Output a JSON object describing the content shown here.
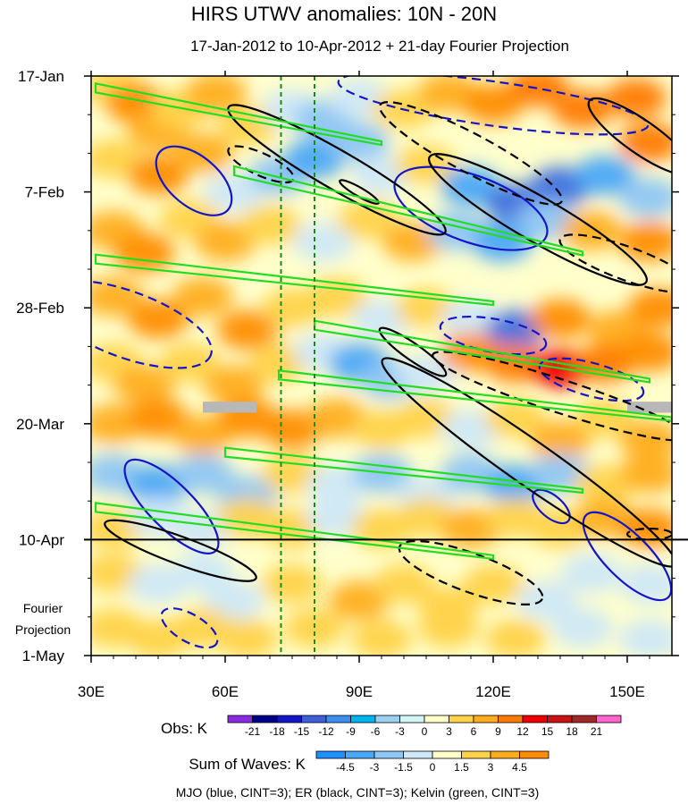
{
  "chart_data": {
    "type": "heatmap",
    "title": "HIRS UTWV anomalies: 10N - 20N",
    "subtitle": "17-Jan-2012 to 10-Apr-2012 + 21-day Fourier Projection",
    "x_tick_labels": [
      "30E",
      "60E",
      "90E",
      "120E",
      "150E"
    ],
    "x_ticks": [
      30,
      60,
      90,
      120,
      150
    ],
    "xlim": [
      30,
      160
    ],
    "y_tick_labels": [
      "17-Jan",
      "7-Feb",
      "28-Feb",
      "20-Mar",
      "10-Apr",
      "1-May"
    ],
    "y_ticks_days": [
      0,
      21,
      42,
      63,
      84,
      105
    ],
    "ylim_days": [
      0,
      105
    ],
    "projection_start_day": 84,
    "projection_label_line1": "Fourier",
    "projection_label_line2": "Projection",
    "reference_longitudes": [
      72.5,
      80
    ],
    "obs_colorbar": {
      "title": "Obs: K",
      "levels": [
        "-21",
        "-18",
        "-15",
        "-12",
        "-9",
        "-6",
        "-3",
        "0",
        "3",
        "6",
        "9",
        "12",
        "15",
        "18",
        "21"
      ],
      "colors": [
        "#8a2be2",
        "#00008b",
        "#1515c8",
        "#3e5fd8",
        "#3c8ff0",
        "#00b4f0",
        "#9cd2f0",
        "#d2f5f5",
        "#ffffc8",
        "#ffd34a",
        "#ffad1e",
        "#ff7a00",
        "#f00000",
        "#c81414",
        "#a02828",
        "#ff66cc"
      ]
    },
    "waves_colorbar": {
      "title": "Sum of Waves: K",
      "levels": [
        "-4.5",
        "-3",
        "-1.5",
        "0",
        "1.5",
        "3",
        "4.5"
      ],
      "colors": [
        "#1e90ff",
        "#4aa8f8",
        "#8ec6f4",
        "#cfe8f8",
        "#ffffcc",
        "#ffd34a",
        "#ffad1e",
        "#ff8c00"
      ]
    },
    "contour_colors": {
      "mjo": "#1515c8",
      "er": "#000000",
      "kelvin": "#22dd22",
      "ref_lines": "#1a8a1a"
    },
    "footer": "MJO (blue, CINT=3); ER (black, CINT=3); Kelvin (green, CINT=3)",
    "anomaly_field": [
      {
        "x": 35,
        "y": 2,
        "v": 1.5
      },
      {
        "x": 40,
        "y": 5,
        "v": 4.5
      },
      {
        "x": 45,
        "y": 10,
        "v": 3
      },
      {
        "x": 50,
        "y": 6,
        "v": 1.5
      },
      {
        "x": 58,
        "y": 3,
        "v": 3
      },
      {
        "x": 65,
        "y": 9,
        "v": 1.5
      },
      {
        "x": 75,
        "y": 6,
        "v": -1.5
      },
      {
        "x": 82,
        "y": 8,
        "v": -3
      },
      {
        "x": 90,
        "y": 4,
        "v": -1.5
      },
      {
        "x": 100,
        "y": 6,
        "v": 1.5
      },
      {
        "x": 110,
        "y": 3,
        "v": 3
      },
      {
        "x": 120,
        "y": 5,
        "v": 4.5
      },
      {
        "x": 130,
        "y": 2,
        "v": 6
      },
      {
        "x": 140,
        "y": 6,
        "v": 7.5
      },
      {
        "x": 152,
        "y": 4,
        "v": 6
      },
      {
        "x": 155,
        "y": 12,
        "v": 6
      },
      {
        "x": 35,
        "y": 15,
        "v": 1.5
      },
      {
        "x": 45,
        "y": 18,
        "v": 4.5
      },
      {
        "x": 55,
        "y": 14,
        "v": 3
      },
      {
        "x": 62,
        "y": 21,
        "v": -1.5
      },
      {
        "x": 72,
        "y": 18,
        "v": -3
      },
      {
        "x": 80,
        "y": 15,
        "v": -4.5
      },
      {
        "x": 90,
        "y": 12,
        "v": -3
      },
      {
        "x": 95,
        "y": 18,
        "v": -1.5
      },
      {
        "x": 105,
        "y": 16,
        "v": 1.5
      },
      {
        "x": 115,
        "y": 20,
        "v": -4.5
      },
      {
        "x": 125,
        "y": 23,
        "v": -6
      },
      {
        "x": 135,
        "y": 20,
        "v": -7.5
      },
      {
        "x": 145,
        "y": 18,
        "v": -4.5
      },
      {
        "x": 155,
        "y": 22,
        "v": -3
      },
      {
        "x": 35,
        "y": 28,
        "v": 3
      },
      {
        "x": 42,
        "y": 32,
        "v": 4.5
      },
      {
        "x": 52,
        "y": 26,
        "v": 1.5
      },
      {
        "x": 60,
        "y": 30,
        "v": 3
      },
      {
        "x": 70,
        "y": 27,
        "v": 1.5
      },
      {
        "x": 82,
        "y": 30,
        "v": -1.5
      },
      {
        "x": 92,
        "y": 26,
        "v": 1.5
      },
      {
        "x": 102,
        "y": 30,
        "v": 3
      },
      {
        "x": 112,
        "y": 28,
        "v": -3
      },
      {
        "x": 122,
        "y": 30,
        "v": -4.5
      },
      {
        "x": 132,
        "y": 26,
        "v": -3
      },
      {
        "x": 142,
        "y": 28,
        "v": 3
      },
      {
        "x": 155,
        "y": 30,
        "v": 4.5
      },
      {
        "x": 35,
        "y": 40,
        "v": 3
      },
      {
        "x": 45,
        "y": 44,
        "v": 4.5
      },
      {
        "x": 55,
        "y": 40,
        "v": 3
      },
      {
        "x": 65,
        "y": 46,
        "v": 4.5
      },
      {
        "x": 75,
        "y": 42,
        "v": 1.5
      },
      {
        "x": 85,
        "y": 40,
        "v": 1.5
      },
      {
        "x": 95,
        "y": 44,
        "v": -1.5
      },
      {
        "x": 105,
        "y": 42,
        "v": 1.5
      },
      {
        "x": 115,
        "y": 44,
        "v": -1.5
      },
      {
        "x": 125,
        "y": 46,
        "v": -6
      },
      {
        "x": 135,
        "y": 44,
        "v": 4.5
      },
      {
        "x": 148,
        "y": 46,
        "v": 3
      },
      {
        "x": 157,
        "y": 42,
        "v": 4.5
      },
      {
        "x": 35,
        "y": 52,
        "v": 1.5
      },
      {
        "x": 42,
        "y": 56,
        "v": 3
      },
      {
        "x": 52,
        "y": 52,
        "v": 1.5
      },
      {
        "x": 62,
        "y": 56,
        "v": 3
      },
      {
        "x": 72,
        "y": 52,
        "v": 1.5
      },
      {
        "x": 82,
        "y": 50,
        "v": -1.5
      },
      {
        "x": 90,
        "y": 52,
        "v": -4.5
      },
      {
        "x": 97,
        "y": 55,
        "v": -3
      },
      {
        "x": 105,
        "y": 54,
        "v": -1.5
      },
      {
        "x": 115,
        "y": 50,
        "v": 4.5
      },
      {
        "x": 125,
        "y": 52,
        "v": 7.5
      },
      {
        "x": 135,
        "y": 53,
        "v": 9
      },
      {
        "x": 145,
        "y": 52,
        "v": 7.5
      },
      {
        "x": 155,
        "y": 50,
        "v": 4.5
      },
      {
        "x": 35,
        "y": 63,
        "v": 3
      },
      {
        "x": 45,
        "y": 62,
        "v": 4.5
      },
      {
        "x": 55,
        "y": 65,
        "v": 3
      },
      {
        "x": 65,
        "y": 62,
        "v": 4.5
      },
      {
        "x": 75,
        "y": 64,
        "v": 4.5
      },
      {
        "x": 85,
        "y": 62,
        "v": 3
      },
      {
        "x": 95,
        "y": 64,
        "v": 1.5
      },
      {
        "x": 105,
        "y": 62,
        "v": 1.5
      },
      {
        "x": 115,
        "y": 64,
        "v": -1.5
      },
      {
        "x": 125,
        "y": 62,
        "v": 1.5
      },
      {
        "x": 135,
        "y": 66,
        "v": 3
      },
      {
        "x": 145,
        "y": 62,
        "v": 1.5
      },
      {
        "x": 155,
        "y": 66,
        "v": 3
      },
      {
        "x": 35,
        "y": 72,
        "v": -3
      },
      {
        "x": 45,
        "y": 74,
        "v": -4.5
      },
      {
        "x": 55,
        "y": 72,
        "v": -3
      },
      {
        "x": 65,
        "y": 76,
        "v": -3
      },
      {
        "x": 75,
        "y": 72,
        "v": 1.5
      },
      {
        "x": 85,
        "y": 74,
        "v": -1.5
      },
      {
        "x": 95,
        "y": 72,
        "v": -3
      },
      {
        "x": 105,
        "y": 76,
        "v": -1.5
      },
      {
        "x": 115,
        "y": 72,
        "v": -3
      },
      {
        "x": 125,
        "y": 74,
        "v": -4.5
      },
      {
        "x": 135,
        "y": 72,
        "v": -3
      },
      {
        "x": 145,
        "y": 74,
        "v": 1.5
      },
      {
        "x": 155,
        "y": 72,
        "v": 3
      },
      {
        "x": 35,
        "y": 82,
        "v": 1.5
      },
      {
        "x": 45,
        "y": 80,
        "v": -1.5
      },
      {
        "x": 55,
        "y": 82,
        "v": -1.5
      },
      {
        "x": 65,
        "y": 80,
        "v": 1.5
      },
      {
        "x": 75,
        "y": 82,
        "v": 1.5
      },
      {
        "x": 85,
        "y": 80,
        "v": -1.5
      },
      {
        "x": 95,
        "y": 82,
        "v": 1.5
      },
      {
        "x": 105,
        "y": 80,
        "v": 1.5
      },
      {
        "x": 115,
        "y": 82,
        "v": 3
      },
      {
        "x": 125,
        "y": 80,
        "v": 1.5
      },
      {
        "x": 135,
        "y": 82,
        "v": 1.5
      },
      {
        "x": 145,
        "y": 80,
        "v": 3
      },
      {
        "x": 155,
        "y": 82,
        "v": 4.5
      },
      {
        "x": 35,
        "y": 90,
        "v": 1.5
      },
      {
        "x": 45,
        "y": 92,
        "v": -1.5
      },
      {
        "x": 55,
        "y": 90,
        "v": -1.5
      },
      {
        "x": 62,
        "y": 95,
        "v": -1.5
      },
      {
        "x": 75,
        "y": 92,
        "v": 1.5
      },
      {
        "x": 90,
        "y": 95,
        "v": 3
      },
      {
        "x": 100,
        "y": 92,
        "v": 1.5
      },
      {
        "x": 110,
        "y": 96,
        "v": 1.5
      },
      {
        "x": 120,
        "y": 92,
        "v": 1.5
      },
      {
        "x": 132,
        "y": 95,
        "v": -1.5
      },
      {
        "x": 142,
        "y": 90,
        "v": -1.5
      },
      {
        "x": 155,
        "y": 92,
        "v": -1.5
      },
      {
        "x": 35,
        "y": 100,
        "v": 1.5
      },
      {
        "x": 45,
        "y": 102,
        "v": 1.5
      },
      {
        "x": 55,
        "y": 100,
        "v": 1.5
      },
      {
        "x": 65,
        "y": 102,
        "v": 1.5
      },
      {
        "x": 80,
        "y": 100,
        "v": 1.5
      },
      {
        "x": 95,
        "y": 102,
        "v": 1.5
      },
      {
        "x": 110,
        "y": 100,
        "v": 1.5
      },
      {
        "x": 125,
        "y": 102,
        "v": 1.5
      },
      {
        "x": 140,
        "y": 100,
        "v": -1.5
      },
      {
        "x": 155,
        "y": 102,
        "v": -1.5
      }
    ],
    "missing_data": [
      {
        "x0": 55,
        "x1": 67,
        "y0": 59,
        "y1": 61
      },
      {
        "x0": 150,
        "x1": 160,
        "y0": 59,
        "y1": 61
      }
    ],
    "mjo_contours": [
      {
        "cx": 53,
        "cy": 19,
        "rx": 10,
        "ry": 4.5,
        "angle": 40,
        "dash": false
      },
      {
        "cx": 48,
        "cy": 78,
        "rx": 14,
        "ry": 4,
        "angle": 45,
        "dash": false
      },
      {
        "cx": 150,
        "cy": 87,
        "rx": 13,
        "ry": 4,
        "angle": 45,
        "dash": false
      },
      {
        "cx": 133,
        "cy": 78,
        "rx": 5,
        "ry": 2,
        "angle": 40,
        "dash": false
      },
      {
        "cx": 115,
        "cy": 24,
        "rx": 18,
        "ry": 6,
        "angle": 20,
        "dash": false
      },
      {
        "cx": 38,
        "cy": 45,
        "rx": 20,
        "ry": 6,
        "angle": 20,
        "dash": true
      },
      {
        "cx": 120,
        "cy": 5,
        "rx": 35,
        "ry": 4,
        "angle": 8,
        "dash": true
      },
      {
        "cx": 52,
        "cy": 100,
        "rx": 7,
        "ry": 2.5,
        "angle": 30,
        "dash": true
      },
      {
        "cx": 142,
        "cy": 55,
        "rx": 12,
        "ry": 3,
        "angle": 15,
        "dash": true
      },
      {
        "cx": 120,
        "cy": 47,
        "rx": 12,
        "ry": 3,
        "angle": 10,
        "dash": true
      }
    ],
    "er_contours": [
      {
        "cx": 85,
        "cy": 17,
        "rx": 28,
        "ry": 3.5,
        "angle": 30,
        "dash": false
      },
      {
        "cx": 130,
        "cy": 26,
        "rx": 28,
        "ry": 4,
        "angle": 30,
        "dash": false
      },
      {
        "cx": 128,
        "cy": 70,
        "rx": 40,
        "ry": 4,
        "angle": 35,
        "dash": false
      },
      {
        "cx": 102,
        "cy": 50,
        "rx": 9,
        "ry": 1.5,
        "angle": 35,
        "dash": false
      },
      {
        "cx": 50,
        "cy": 86,
        "rx": 18,
        "ry": 2.5,
        "angle": 20,
        "dash": false
      },
      {
        "cx": 153,
        "cy": 11,
        "rx": 14,
        "ry": 3,
        "angle": 35,
        "dash": false
      },
      {
        "cx": 90,
        "cy": 21,
        "rx": 5,
        "ry": 0.8,
        "angle": 30,
        "dash": false
      },
      {
        "cx": 115,
        "cy": 14,
        "rx": 23,
        "ry": 3.5,
        "angle": 28,
        "dash": true
      },
      {
        "cx": 135,
        "cy": 58,
        "rx": 30,
        "ry": 3,
        "angle": 18,
        "dash": true
      },
      {
        "cx": 115,
        "cy": 90,
        "rx": 17,
        "ry": 3.5,
        "angle": 20,
        "dash": true
      },
      {
        "cx": 68,
        "cy": 16,
        "rx": 8,
        "ry": 2,
        "angle": 25,
        "dash": true
      },
      {
        "cx": 150,
        "cy": 34,
        "rx": 16,
        "ry": 3,
        "angle": 20,
        "dash": true
      },
      {
        "cx": 155,
        "cy": 83,
        "rx": 5,
        "ry": 1,
        "angle": 0,
        "dash": true
      }
    ],
    "kelvin_contours": [
      {
        "x1": 31,
        "y1": 2,
        "x2": 95,
        "y2": 12
      },
      {
        "x1": 62,
        "y1": 17,
        "x2": 140,
        "y2": 32
      },
      {
        "x1": 31,
        "y1": 33,
        "x2": 120,
        "y2": 41
      },
      {
        "x1": 80,
        "y1": 45,
        "x2": 155,
        "y2": 55
      },
      {
        "x1": 72,
        "y1": 54,
        "x2": 160,
        "y2": 62
      },
      {
        "x1": 60,
        "y1": 68,
        "x2": 140,
        "y2": 75
      },
      {
        "x1": 31,
        "y1": 78,
        "x2": 120,
        "y2": 87
      }
    ]
  }
}
